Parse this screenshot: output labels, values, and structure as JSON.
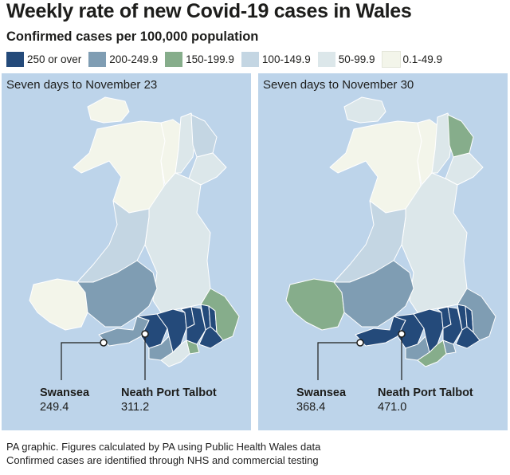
{
  "header": {
    "title": "Weekly rate of new Covid-19 cases in Wales",
    "subtitle": "Confirmed cases per 100,000 population"
  },
  "legend": [
    {
      "label": "250 or over",
      "color": "#244a7a"
    },
    {
      "label": "200-249.9",
      "color": "#7f9db3"
    },
    {
      "label": "150-199.9",
      "color": "#86ad8b"
    },
    {
      "label": "100-149.9",
      "color": "#c4d6e3"
    },
    {
      "label": "50-99.9",
      "color": "#dce7ea"
    },
    {
      "label": "0.1-49.9",
      "color": "#f3f5ea"
    }
  ],
  "maps": [
    {
      "title": "Seven days to November 23",
      "callouts": [
        {
          "name": "Swansea",
          "value": "249.4"
        },
        {
          "name": "Neath Port Talbot",
          "value": "311.2"
        }
      ]
    },
    {
      "title": "Seven days to November 30",
      "callouts": [
        {
          "name": "Swansea",
          "value": "368.4"
        },
        {
          "name": "Neath Port Talbot",
          "value": "471.0"
        }
      ]
    }
  ],
  "footer": {
    "line1": "PA graphic. Figures calculated by PA using Public Health Wales data",
    "line2": "Confirmed cases are identified through NHS and commercial testing"
  }
}
